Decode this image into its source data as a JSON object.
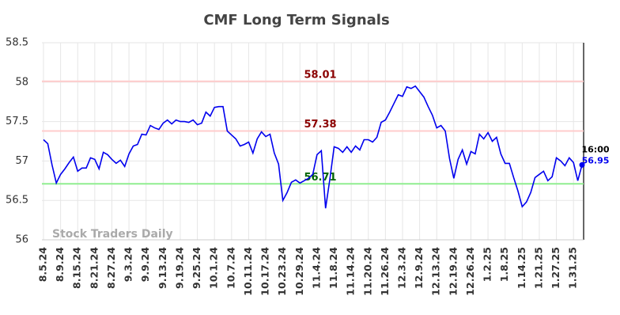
{
  "chart_data": {
    "type": "line",
    "title": "CMF Long Term Signals",
    "watermark": "Stock Traders Daily",
    "last_label": "16:00",
    "color": "#0000ee",
    "categories": [
      "8.5.24",
      null,
      null,
      null,
      "8.9.24",
      null,
      null,
      null,
      "8.15.24",
      null,
      null,
      null,
      "8.21.24",
      null,
      null,
      null,
      "8.27.24",
      null,
      null,
      null,
      "9.3.24",
      null,
      null,
      null,
      "9.9.24",
      null,
      null,
      null,
      "9.13.24",
      null,
      null,
      null,
      "9.19.24",
      null,
      null,
      null,
      "9.25.24",
      null,
      null,
      null,
      "10.1.24",
      null,
      null,
      null,
      "10.7.24",
      null,
      null,
      null,
      "10.11.24",
      null,
      null,
      null,
      "10.17.24",
      null,
      null,
      null,
      "10.23.24",
      null,
      null,
      null,
      "10.29.24",
      null,
      null,
      null,
      "11.4.24",
      null,
      null,
      null,
      "11.8.24",
      null,
      null,
      null,
      "11.14.24",
      null,
      null,
      null,
      "11.20.24",
      null,
      null,
      null,
      "11.26.24",
      null,
      null,
      null,
      "12.3.24",
      null,
      null,
      null,
      "12.9.24",
      null,
      null,
      null,
      "12.13.24",
      null,
      null,
      null,
      "12.19.24",
      null,
      null,
      null,
      "12.26.24",
      null,
      null,
      null,
      "1.2.25",
      null,
      null,
      null,
      "1.8.25",
      null,
      null,
      null,
      "1.14.25",
      null,
      null,
      null,
      "1.21.25",
      null,
      null,
      null,
      "1.27.25",
      null,
      null,
      null,
      "1.31.25",
      null,
      null
    ],
    "values": [
      57.27,
      57.22,
      56.95,
      56.72,
      56.83,
      56.9,
      56.98,
      57.05,
      56.87,
      56.91,
      56.91,
      57.04,
      57.02,
      56.9,
      57.11,
      57.08,
      57.02,
      56.97,
      57.01,
      56.93,
      57.09,
      57.19,
      57.21,
      57.34,
      57.33,
      57.45,
      57.42,
      57.4,
      57.48,
      57.52,
      57.47,
      57.52,
      57.5,
      57.5,
      57.49,
      57.52,
      57.46,
      57.48,
      57.62,
      57.57,
      57.68,
      57.69,
      57.69,
      57.38,
      57.33,
      57.28,
      57.19,
      57.21,
      57.24,
      57.1,
      57.28,
      57.37,
      57.31,
      57.34,
      57.1,
      56.96,
      56.5,
      56.6,
      56.73,
      56.76,
      56.72,
      56.75,
      56.78,
      56.83,
      57.08,
      57.13,
      56.4,
      56.77,
      57.18,
      57.16,
      57.11,
      57.18,
      57.11,
      57.19,
      57.14,
      57.27,
      57.27,
      57.24,
      57.3,
      57.49,
      57.52,
      57.62,
      57.73,
      57.84,
      57.82,
      57.94,
      57.92,
      57.95,
      57.88,
      57.81,
      57.69,
      57.58,
      57.42,
      57.45,
      57.38,
      57.03,
      56.78,
      57.02,
      57.14,
      56.96,
      57.12,
      57.09,
      57.34,
      57.28,
      57.36,
      57.25,
      57.3,
      57.09,
      56.97,
      56.97,
      56.79,
      56.62,
      56.42,
      56.48,
      56.6,
      56.79,
      56.83,
      56.87,
      56.75,
      56.8,
      57.04,
      57.0,
      56.94,
      57.04,
      56.98,
      56.75,
      56.95
    ],
    "hlines": [
      {
        "value": 58.01,
        "color": "#ffcccc",
        "label_color": "#8b0000"
      },
      {
        "value": 57.38,
        "color": "#ffcccc",
        "label_color": "#8b0000"
      },
      {
        "value": 56.71,
        "color": "#90ee90",
        "label_color": "#006400"
      }
    ],
    "ylim": [
      56,
      58.5
    ],
    "yticks": [
      56,
      56.5,
      57,
      57.5,
      58,
      58.5
    ],
    "grid": true
  }
}
